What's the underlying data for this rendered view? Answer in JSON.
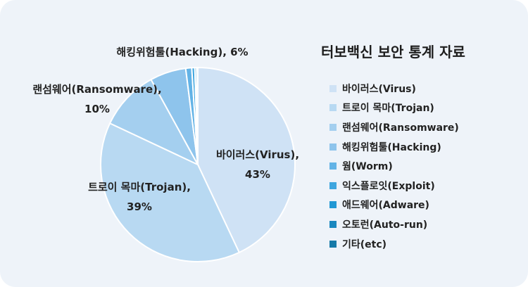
{
  "chart_data": {
    "type": "pie",
    "title": "터보백신 보안 통계 자료",
    "slices": [
      {
        "label": "바이러스(Virus)",
        "value": 43,
        "color": "#cfe2f5"
      },
      {
        "label": "트로이 목마(Trojan)",
        "value": 39,
        "color": "#b8d9f2"
      },
      {
        "label": "랜섬웨어(Ransomware)",
        "value": 10,
        "color": "#a4cfef"
      },
      {
        "label": "해킹위험툴(Hacking)",
        "value": 6,
        "color": "#8ec4ec"
      },
      {
        "label": "웜(Worm)",
        "value": 1,
        "color": "#63b3e6"
      },
      {
        "label": "익스플로잇(Exploit)",
        "value": 0.5,
        "color": "#3ea6df"
      },
      {
        "label": "애드웨어(Adware)",
        "value": 0.3,
        "color": "#2198d4"
      },
      {
        "label": "오토런(Auto-run)",
        "value": 0.1,
        "color": "#1a88bf"
      },
      {
        "label": "기타(etc)",
        "value": 0.1,
        "color": "#167aa8"
      }
    ],
    "data_labels": [
      {
        "name": "바이러스(Virus),",
        "pct": "43%"
      },
      {
        "name": "트로이 목마(Trojan),",
        "pct": "39%"
      },
      {
        "name": "랜섬웨어(Ransomware),",
        "pct": "10%"
      },
      {
        "name": "해킹위험툴(Hacking), 6%",
        "pct": ""
      }
    ],
    "legend_position": "right"
  }
}
